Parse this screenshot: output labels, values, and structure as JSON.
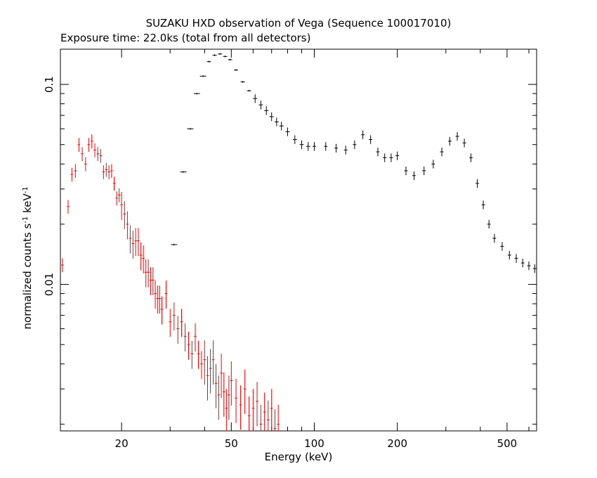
{
  "chart_data": {
    "type": "scatter",
    "title": "SUZAKU HXD observation of Vega (Sequence 100017010)",
    "subtitle": "Exposure time: 22.0ks (total from all detectors)",
    "xlabel": "Energy (keV)",
    "ylabel": "normalized counts s^-1 keV^-1",
    "x_scale": "log",
    "y_scale": "log",
    "xlim": [
      12,
      640
    ],
    "ylim": [
      0.00185,
      0.15
    ],
    "x_tick_labels": [
      "20",
      "50",
      "100",
      "200",
      "500"
    ],
    "y_tick_labels": [
      "0.01",
      "0.1"
    ],
    "grid": false,
    "error_bars": true,
    "series": [
      {
        "color": "#000000",
        "x": [
          31,
          33.5,
          35.5,
          37.5,
          39.5,
          41.5,
          43.5,
          45.5,
          47.5,
          49.5,
          52,
          55,
          58,
          61,
          64,
          67,
          70,
          73,
          76,
          80,
          85,
          90,
          95,
          100,
          110,
          120,
          130,
          140,
          150,
          160,
          170,
          180,
          190,
          200,
          215,
          230,
          250,
          270,
          290,
          310,
          330,
          350,
          370,
          390,
          410,
          430,
          450,
          480,
          510,
          540,
          570,
          600,
          630
        ],
        "y": [
          0.0158,
          0.0365,
          0.06,
          0.09,
          0.11,
          0.13,
          0.14,
          0.142,
          0.138,
          0.133,
          0.118,
          0.103,
          0.093,
          0.085,
          0.079,
          0.074,
          0.069,
          0.065,
          0.062,
          0.058,
          0.053,
          0.05,
          0.049,
          0.049,
          0.049,
          0.048,
          0.047,
          0.05,
          0.056,
          0.053,
          0.046,
          0.043,
          0.043,
          0.044,
          0.037,
          0.035,
          0.037,
          0.04,
          0.046,
          0.052,
          0.055,
          0.051,
          0.043,
          0.032,
          0.025,
          0.02,
          0.017,
          0.0155,
          0.014,
          0.0135,
          0.0128,
          0.0124,
          0.012
        ]
      },
      {
        "color": "#ff0000",
        "x": [
          12.2,
          12.8,
          13.2,
          13.6,
          14.0,
          14.4,
          14.8,
          15.2,
          15.6,
          16.0,
          16.4,
          16.8,
          17.2,
          17.6,
          18.0,
          18.4,
          18.8,
          19.2,
          19.6,
          20.0,
          20.5,
          21,
          21.5,
          22,
          22.5,
          23,
          23.5,
          24,
          24.5,
          25,
          25.5,
          26,
          26.5,
          27,
          27.5,
          28,
          29,
          30,
          31,
          32,
          33,
          34,
          35,
          36,
          37,
          38,
          39,
          40,
          41,
          42,
          43,
          44,
          45,
          46,
          47,
          48,
          49,
          50,
          52,
          54,
          56,
          58,
          60,
          62,
          64,
          66,
          68,
          70,
          72,
          74
        ],
        "y": [
          0.0125,
          0.0245,
          0.0355,
          0.037,
          0.05,
          0.045,
          0.04,
          0.05,
          0.052,
          0.047,
          0.045,
          0.044,
          0.0365,
          0.0375,
          0.0365,
          0.037,
          0.032,
          0.027,
          0.028,
          0.025,
          0.0225,
          0.02,
          0.017,
          0.016,
          0.0165,
          0.0165,
          0.014,
          0.0135,
          0.0115,
          0.0115,
          0.0105,
          0.0105,
          0.009,
          0.0085,
          0.0085,
          0.0075,
          0.009,
          0.0065,
          0.007,
          0.006,
          0.0065,
          0.0055,
          0.005,
          0.0045,
          0.0055,
          0.0045,
          0.004,
          0.0042,
          0.0035,
          0.0038,
          0.0042,
          0.0032,
          0.0028,
          0.0036,
          0.0029,
          0.0024,
          0.0028,
          0.0033,
          0.0027,
          0.0025,
          0.003,
          0.0022,
          0.0024,
          0.0026,
          0.002,
          0.0023,
          0.0021,
          0.0024,
          0.0019,
          0.002
        ]
      }
    ]
  }
}
